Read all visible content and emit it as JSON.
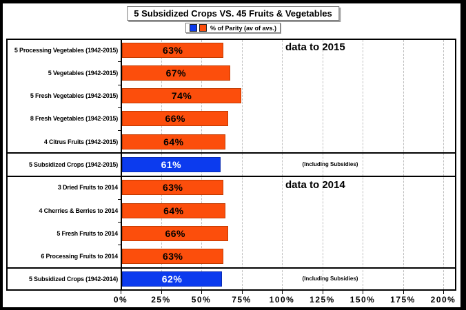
{
  "title": "5 Subsidized Crops VS. 45 Fruits & Vegetables",
  "legend": {
    "label": "% of Parity (av of avs.)",
    "swatch_colors": [
      "#0C3BEE",
      "#FC4E0C"
    ]
  },
  "colors": {
    "subsidized_blue": "#0C3BEE",
    "fruits_veg_orange": "#FC4E0C",
    "blue_border": "#0A2BB0",
    "orange_border": "#C23A00",
    "gridline": "#BFBFBF",
    "value_text_on_orange": "#000000",
    "value_text_on_blue": "#FFFFFF"
  },
  "chart_data": {
    "type": "bar",
    "orientation": "horizontal",
    "title": "5 Subsidized Crops VS. 45 Fruits & Vegetables",
    "series_name": "% of Parity (av of avs.)",
    "unit": "%",
    "xlim": [
      0,
      200
    ],
    "xticks": [
      "0%",
      "25%",
      "50%",
      "75%",
      "100%",
      "125%",
      "150%",
      "175%",
      "200%"
    ],
    "grid": "vertical-dashed",
    "legend_position": "top",
    "rows": [
      {
        "label": "5 Processing Vegetables (1942-2015)",
        "value": 63,
        "group": "fruits_veg",
        "section": 0
      },
      {
        "label": "5 Vegetables (1942-2015)",
        "value": 67,
        "group": "fruits_veg",
        "section": 0
      },
      {
        "label": "5 Fresh Vegetables (1942-2015)",
        "value": 74,
        "group": "fruits_veg",
        "section": 0
      },
      {
        "label": "8 Fresh Vegetables (1942-2015)",
        "value": 66,
        "group": "fruits_veg",
        "section": 0
      },
      {
        "label": "4 Citrus Fruits (1942-2015)",
        "value": 64,
        "group": "fruits_veg",
        "section": 0
      },
      {
        "label": "5 Subsidized Crops (1942-2015)",
        "value": 61,
        "group": "subsidized",
        "section": 1,
        "note": "(Including Subsidies)"
      },
      {
        "label": "3 Dried Fruits to 2014",
        "value": 63,
        "group": "fruits_veg",
        "section": 2
      },
      {
        "label": "4 Cherries & Berries to 2014",
        "value": 64,
        "group": "fruits_veg",
        "section": 2
      },
      {
        "label": "5 Fresh Fruits to 2014",
        "value": 66,
        "group": "fruits_veg",
        "section": 2
      },
      {
        "label": "6 Processing Fruits to 2014",
        "value": 63,
        "group": "fruits_veg",
        "section": 2
      },
      {
        "label": "5 Subsidized Crops (1942-2014)",
        "value": 62,
        "group": "subsidized",
        "section": 3,
        "note": "(Including Subsidies)"
      }
    ],
    "section_annotations": [
      {
        "after_row_index": 0,
        "text": "data to 2015"
      },
      {
        "after_row_index": 6,
        "text": "data to 2014"
      }
    ]
  }
}
